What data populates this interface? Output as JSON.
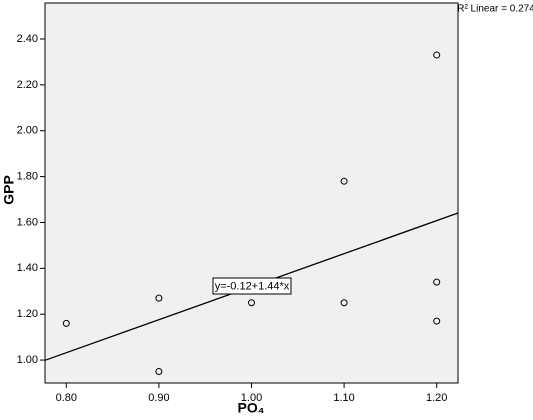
{
  "chart_data": {
    "type": "scatter",
    "x_label": "PO₄",
    "y_label": "GPP",
    "x": [
      0.8,
      0.9,
      0.9,
      1.0,
      1.1,
      1.1,
      1.2,
      1.2,
      1.2
    ],
    "values": [
      1.16,
      1.27,
      0.95,
      1.25,
      1.78,
      1.25,
      2.33,
      1.34,
      1.17
    ],
    "xlim": [
      0.777,
      1.223
    ],
    "ylim": [
      0.9,
      2.557
    ],
    "xticks": [
      {
        "value": 0.8,
        "label": "0.80"
      },
      {
        "value": 0.9,
        "label": "0.90"
      },
      {
        "value": 1.0,
        "label": "1.00"
      },
      {
        "value": 1.1,
        "label": "1.10"
      },
      {
        "value": 1.2,
        "label": "1.20"
      }
    ],
    "yticks": [
      {
        "value": 1.0,
        "label": "1.00"
      },
      {
        "value": 1.2,
        "label": "1.20"
      },
      {
        "value": 1.4,
        "label": "1.40"
      },
      {
        "value": 1.6,
        "label": "1.60"
      },
      {
        "value": 1.8,
        "label": "1.80"
      },
      {
        "value": 2.0,
        "label": "2.00"
      },
      {
        "value": 2.2,
        "label": "2.20"
      },
      {
        "value": 2.4,
        "label": "2.40"
      }
    ],
    "fit_line": {
      "intercept": -0.12,
      "slope": 1.44,
      "label": "y=-0.12+1.44*x"
    },
    "annotation": "R² Linear = 0.274"
  }
}
